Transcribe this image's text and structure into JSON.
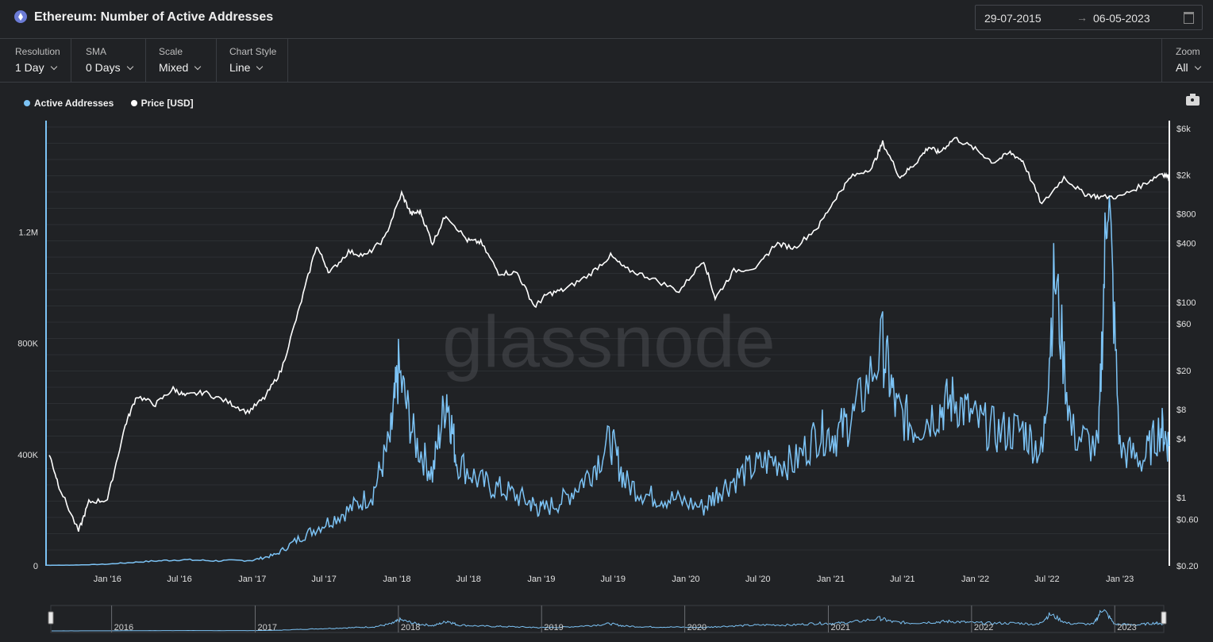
{
  "header": {
    "title": "Ethereum: Number of Active Addresses",
    "date_from": "29-07-2015",
    "date_arrow": "→",
    "date_to": "06-05-2023"
  },
  "controls": {
    "resolution": {
      "label": "Resolution",
      "value": "1 Day"
    },
    "sma": {
      "label": "SMA",
      "value": "0 Days"
    },
    "scale": {
      "label": "Scale",
      "value": "Mixed"
    },
    "chart_style": {
      "label": "Chart Style",
      "value": "Line"
    },
    "zoom": {
      "label": "Zoom",
      "value": "All"
    }
  },
  "legend": [
    {
      "name": "Active Addresses",
      "color": "#7cc3f5"
    },
    {
      "name": "Price [USD]",
      "color": "#ffffff"
    }
  ],
  "watermark": "glassnode",
  "colors": {
    "background": "#202225",
    "active": "#7cc3f5",
    "price": "#ffffff",
    "grid": "#2c2f33"
  },
  "chart_data": {
    "type": "line",
    "left_axis": {
      "ticks": [
        0,
        400000,
        800000,
        1200000
      ],
      "tick_labels": [
        "0",
        "400K",
        "800K",
        "1.2M"
      ],
      "range": [
        0,
        1600000
      ]
    },
    "right_axis": {
      "scale": "log",
      "ticks": [
        0.2,
        0.6,
        1,
        4,
        8,
        20,
        60,
        100,
        400,
        800,
        2000,
        6000
      ],
      "tick_labels": [
        "$0.20",
        "$0.60",
        "$1",
        "$4",
        "$8",
        "$20",
        "$60",
        "$100",
        "$400",
        "$800",
        "$2k",
        "$6k"
      ],
      "range": [
        0.2,
        6000
      ]
    },
    "x_axis": {
      "range": [
        "2015-07-30",
        "2023-05-06"
      ],
      "ticks": [
        "2016-01-01",
        "2016-07-01",
        "2017-01-01",
        "2017-07-01",
        "2018-01-01",
        "2018-07-01",
        "2019-01-01",
        "2019-07-01",
        "2020-01-01",
        "2020-07-01",
        "2021-01-01",
        "2021-07-01",
        "2022-01-01",
        "2022-07-01",
        "2023-01-01"
      ],
      "tick_labels": [
        "Jan '16",
        "Jul '16",
        "Jan '17",
        "Jul '17",
        "Jan '18",
        "Jul '18",
        "Jan '19",
        "Jul '19",
        "Jan '20",
        "Jul '20",
        "Jan '21",
        "Jul '21",
        "Jan '22",
        "Jul '22",
        "Jan '23"
      ]
    },
    "series": [
      {
        "name": "Active Addresses",
        "axis": "left",
        "x": [
          "2015-08-01",
          "2015-10-01",
          "2016-01-01",
          "2016-04-01",
          "2016-07-01",
          "2016-10-01",
          "2017-01-01",
          "2017-03-01",
          "2017-05-01",
          "2017-07-01",
          "2017-09-01",
          "2017-11-01",
          "2017-12-15",
          "2018-01-05",
          "2018-02-15",
          "2018-04-01",
          "2018-05-07",
          "2018-06-01",
          "2018-08-01",
          "2018-10-01",
          "2018-12-01",
          "2019-01-01",
          "2019-03-01",
          "2019-05-01",
          "2019-06-25",
          "2019-08-01",
          "2019-10-01",
          "2019-12-01",
          "2020-02-15",
          "2020-04-01",
          "2020-06-01",
          "2020-08-01",
          "2020-10-01",
          "2020-12-01",
          "2021-01-15",
          "2021-03-01",
          "2021-05-12",
          "2021-06-15",
          "2021-08-01",
          "2021-10-01",
          "2021-11-10",
          "2022-01-01",
          "2022-03-01",
          "2022-05-01",
          "2022-06-20",
          "2022-07-20",
          "2022-09-01",
          "2022-11-08",
          "2022-12-01",
          "2023-01-01",
          "2023-03-01",
          "2023-04-15",
          "2023-05-06"
        ],
        "values": [
          2000,
          2500,
          6000,
          15000,
          22000,
          18000,
          20000,
          40000,
          100000,
          150000,
          200000,
          260000,
          450000,
          700000,
          450000,
          330000,
          620000,
          380000,
          300000,
          270000,
          230000,
          200000,
          240000,
          330000,
          450000,
          300000,
          250000,
          240000,
          210000,
          280000,
          340000,
          380000,
          370000,
          480000,
          470000,
          540000,
          790000,
          560000,
          500000,
          560000,
          600000,
          520000,
          480000,
          490000,
          400000,
          1050000,
          480000,
          420000,
          1410000,
          420000,
          380000,
          500000,
          430000
        ]
      },
      {
        "name": "Price [USD]",
        "axis": "right",
        "x": [
          "2015-08-07",
          "2015-09-01",
          "2015-10-20",
          "2015-11-15",
          "2016-01-01",
          "2016-02-15",
          "2016-03-15",
          "2016-05-01",
          "2016-06-15",
          "2016-07-15",
          "2016-09-01",
          "2016-11-01",
          "2016-12-20",
          "2017-02-01",
          "2017-03-15",
          "2017-05-01",
          "2017-06-12",
          "2017-07-15",
          "2017-09-01",
          "2017-10-15",
          "2017-12-01",
          "2018-01-13",
          "2018-02-06",
          "2018-03-01",
          "2018-04-01",
          "2018-05-05",
          "2018-06-28",
          "2018-08-01",
          "2018-09-15",
          "2018-11-01",
          "2018-12-15",
          "2019-01-15",
          "2019-03-01",
          "2019-05-01",
          "2019-06-25",
          "2019-08-01",
          "2019-10-01",
          "2019-12-15",
          "2020-02-15",
          "2020-03-15",
          "2020-05-01",
          "2020-07-01",
          "2020-08-15",
          "2020-10-01",
          "2020-12-01",
          "2021-01-15",
          "2021-02-20",
          "2021-04-15",
          "2021-05-12",
          "2021-06-25",
          "2021-08-01",
          "2021-09-05",
          "2021-10-01",
          "2021-11-10",
          "2022-01-01",
          "2022-02-15",
          "2022-03-30",
          "2022-05-01",
          "2022-06-18",
          "2022-08-13",
          "2022-10-01",
          "2022-11-09",
          "2023-01-01",
          "2023-03-01",
          "2023-04-16",
          "2023-05-06"
        ],
        "values": [
          2.8,
          1.3,
          0.45,
          0.9,
          0.95,
          5.5,
          11,
          9,
          13,
          11,
          12,
          9.5,
          7.5,
          10.5,
          20,
          90,
          380,
          200,
          330,
          300,
          450,
          1300,
          800,
          850,
          400,
          790,
          430,
          410,
          200,
          200,
          90,
          120,
          135,
          190,
          300,
          220,
          180,
          130,
          270,
          110,
          210,
          230,
          400,
          360,
          600,
          1200,
          1900,
          2400,
          4300,
          1900,
          2600,
          3900,
          3400,
          4800,
          3700,
          2700,
          3400,
          2800,
          1000,
          1900,
          1300,
          1200,
          1200,
          1600,
          2100,
          1900
        ]
      }
    ],
    "navigator": {
      "year_labels": [
        "2016",
        "2017",
        "2018",
        "2019",
        "2020",
        "2021",
        "2022",
        "2023"
      ]
    }
  }
}
